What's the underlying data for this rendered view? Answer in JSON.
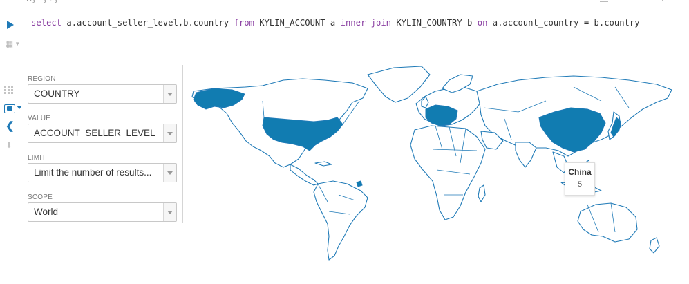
{
  "query": {
    "select_kw": "select",
    "fields": " a.account_seller_level,b.country ",
    "from_kw": "from",
    "table_a": " KYLIN_ACCOUNT a ",
    "inner_kw": "inner join",
    "table_b": " KYLIN_COUNTRY b ",
    "on_kw": "on",
    "condition": " a.account_country = b.country"
  },
  "chart_options": {
    "region": {
      "label": "REGION",
      "value": "COUNTRY"
    },
    "value": {
      "label": "VALUE",
      "value": "ACCOUNT_SELLER_LEVEL"
    },
    "limit": {
      "label": "LIMIT",
      "placeholder": "Limit the number of results..."
    },
    "scope": {
      "label": "SCOPE",
      "value": "World"
    }
  },
  "tooltip": {
    "country": "China",
    "value": "5"
  },
  "colors": {
    "accent": "#1f7ab7",
    "fill": "#117cb1",
    "keyword": "#8a3fa2"
  },
  "icons": [
    "play-icon",
    "map-icon",
    "grid-icon",
    "map-chart-icon",
    "chevron-left-icon",
    "download-icon"
  ]
}
